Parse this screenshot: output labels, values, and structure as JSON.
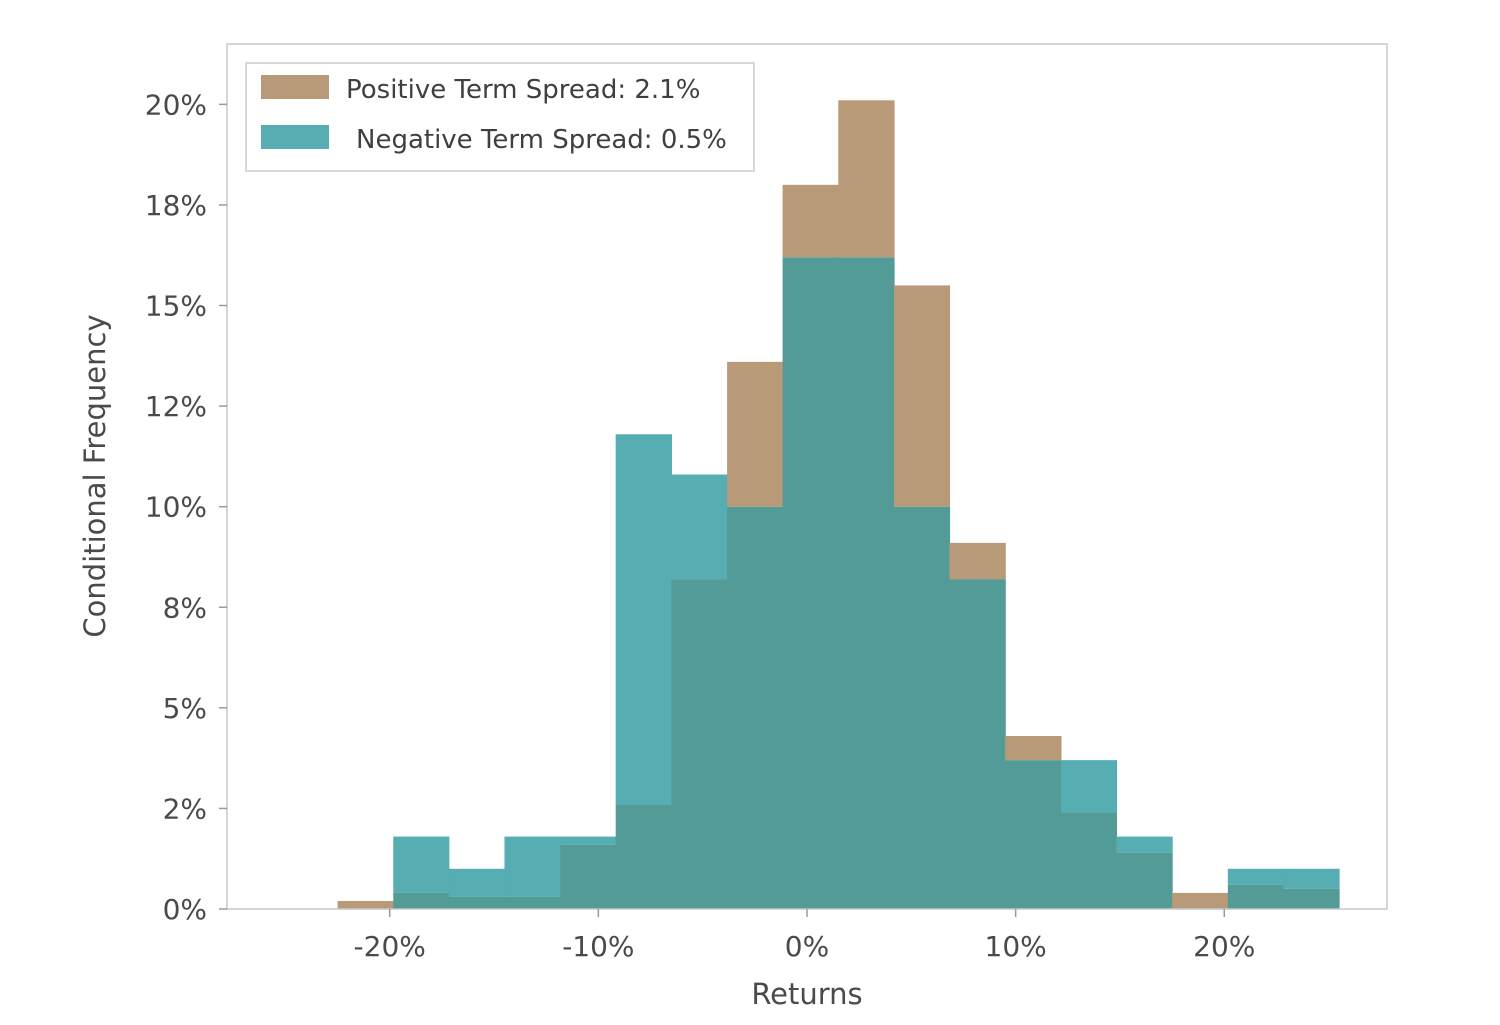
{
  "chart_data": {
    "type": "bar",
    "chart_kind": "overlaid-histogram",
    "title": "",
    "xlabel": "Returns",
    "ylabel": "Conditional Frequency",
    "xlim": [
      -27.8,
      27.8
    ],
    "ylim": [
      0,
      21.5
    ],
    "x_ticks": [
      {
        "value": -20,
        "label": "-20%"
      },
      {
        "value": -10,
        "label": "-10%"
      },
      {
        "value": 0,
        "label": "0%"
      },
      {
        "value": 10,
        "label": "10%"
      },
      {
        "value": 20,
        "label": "20%"
      }
    ],
    "y_ticks": [
      {
        "value": 0,
        "label": "0%"
      },
      {
        "value": 2.5,
        "label": "2%"
      },
      {
        "value": 5,
        "label": "5%"
      },
      {
        "value": 7.5,
        "label": "8%"
      },
      {
        "value": 10,
        "label": "10%"
      },
      {
        "value": 12.5,
        "label": "12%"
      },
      {
        "value": 15,
        "label": "15%"
      },
      {
        "value": 17.5,
        "label": "18%"
      },
      {
        "value": 20,
        "label": "20%"
      }
    ],
    "bin_edges": [
      -22.5,
      -19.83,
      -17.17,
      -14.5,
      -11.83,
      -9.17,
      -6.5,
      -3.83,
      -1.17,
      1.5,
      4.17,
      6.83,
      9.5,
      12.17,
      14.83,
      17.5,
      20.17,
      22.83,
      25.5
    ],
    "series": [
      {
        "name": "Positive Term Spread: 2.1%",
        "color": "#b89a78",
        "values": [
          0.2,
          0.4,
          0.3,
          0.3,
          1.6,
          2.6,
          8.2,
          13.6,
          18.0,
          20.1,
          15.5,
          9.1,
          4.3,
          2.4,
          1.4,
          0.4,
          0.6,
          0.5
        ]
      },
      {
        "name": "Negative Term Spread: 0.5%",
        "color": "#56adb2",
        "values": [
          0.0,
          1.8,
          1.0,
          1.8,
          1.8,
          11.8,
          10.8,
          10.0,
          16.2,
          16.2,
          10.0,
          8.2,
          3.7,
          3.7,
          1.8,
          0.0,
          1.0,
          1.0
        ]
      }
    ],
    "overlap_color": "#539b96",
    "grid": false,
    "legend_position": "top-left"
  }
}
